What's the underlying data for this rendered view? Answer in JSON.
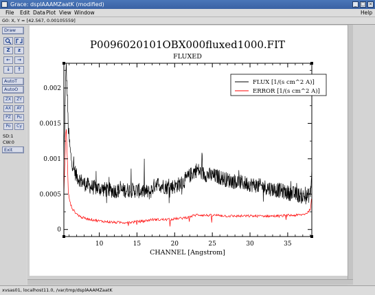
{
  "window": {
    "title": "Grace: dsplAAAMZaatK (modified)",
    "title_icon": "grace-app-icon",
    "controls": [
      "minimize-icon",
      "maximize-icon",
      "close-icon"
    ]
  },
  "menu": {
    "items": [
      "File",
      "Edit",
      "Data",
      "Plot",
      "View",
      "Window"
    ],
    "help": "Help"
  },
  "locator": {
    "text": "G0: X, Y = [42.567, 0.00105559]"
  },
  "toolbar": {
    "draw": "Draw",
    "autot": "AutoT",
    "autoo": "AutoO",
    "zoom_buttons": [
      "ZX",
      "ZY",
      "AX",
      "AY",
      "PZ",
      "Pu",
      "Po",
      "Cy"
    ],
    "sd": "SD:1",
    "cw": "CW:0",
    "exit": "Exit",
    "icons": [
      "zoom-icon",
      "autoscale-icon",
      "zoom-in-icon",
      "zoom-out-icon",
      "scroll-left-icon",
      "scroll-right-icon",
      "scroll-down-icon",
      "scroll-up-icon"
    ]
  },
  "statusbar": {
    "text": "xvsas01, localhost11.0, /var/tmp/dsplAAAMZaatK"
  },
  "chart_data": {
    "type": "line",
    "title": "P0096020101OBX000fluxed1000.FIT",
    "subtitle": "FLUXED",
    "xlabel": "CHANNEL [Angstrom]",
    "ylabel": "",
    "xlim": [
      5.3,
      38.2
    ],
    "ylim": [
      -0.0001,
      0.00235
    ],
    "x_ticks": [
      10,
      15,
      20,
      25,
      30,
      35
    ],
    "x_tick_labels": [
      "10",
      "15",
      "20",
      "25",
      "30",
      "35"
    ],
    "y_ticks": [
      0,
      0.0005,
      0.001,
      0.0015,
      0.002
    ],
    "y_tick_labels": [
      "0",
      "0.0005",
      "0.001",
      "0.0015",
      "0.002"
    ],
    "grid": false,
    "legend_position": "top-right",
    "series": [
      {
        "name": "FLUX [1/(s cm^2 A)]",
        "color": "#000000",
        "x": [
          5.3,
          5.6,
          5.9,
          6.2,
          6.5,
          7,
          7.5,
          8,
          9,
          10,
          11,
          12,
          13,
          14,
          15,
          16,
          16.7,
          17.2,
          17.5,
          18,
          19,
          20,
          21,
          22,
          22.6,
          23,
          23.5,
          24,
          25,
          26,
          27,
          28,
          29,
          30,
          31,
          32,
          33,
          34,
          35,
          36,
          37,
          37.5,
          38,
          38.2
        ],
        "y": [
          0.0009,
          0.0024,
          0.0014,
          0.00105,
          0.0009,
          0.00075,
          0.0007,
          0.00065,
          0.0006,
          0.00058,
          0.00056,
          0.00055,
          0.00055,
          0.00056,
          0.00055,
          0.00054,
          0.00052,
          0.0006,
          0.00066,
          0.00063,
          0.0006,
          0.00061,
          0.00066,
          0.00076,
          0.00082,
          0.00085,
          0.0008,
          0.00078,
          0.00076,
          0.00074,
          0.0007,
          0.00068,
          0.00066,
          0.00064,
          0.00062,
          0.0006,
          0.00057,
          0.00055,
          0.00052,
          0.0005,
          0.00047,
          0.00046,
          0.0005,
          0.0008
        ],
        "noise": 0.00011
      },
      {
        "name": "ERROR [1/(s cm^2 A)]",
        "color": "#ff0000",
        "x": [
          5.3,
          5.6,
          5.9,
          6.2,
          6.5,
          7,
          7.5,
          8,
          9,
          10,
          11,
          12,
          13,
          14,
          15,
          16,
          17,
          18,
          19,
          20,
          21,
          22,
          23,
          24,
          25,
          26,
          27,
          28,
          29,
          30,
          31,
          32,
          33,
          34,
          35,
          36,
          37,
          37.5,
          38,
          38.2
        ],
        "y": [
          0.0005,
          0.0015,
          0.0005,
          0.00035,
          0.00028,
          0.00022,
          0.00018,
          0.00016,
          0.00014,
          0.00012,
          0.00011,
          0.0001,
          0.0001,
          0.0001,
          0.00011,
          0.00012,
          0.00014,
          0.00014,
          0.00014,
          0.00015,
          0.00016,
          0.00018,
          0.00021,
          0.0002,
          0.0002,
          0.0002,
          0.00019,
          0.00019,
          0.00019,
          0.00019,
          0.00019,
          0.00019,
          0.00019,
          0.00019,
          0.0002,
          0.0002,
          0.00021,
          0.00023,
          0.00028,
          0.0005
        ],
        "noise": 1.8e-05
      }
    ]
  }
}
